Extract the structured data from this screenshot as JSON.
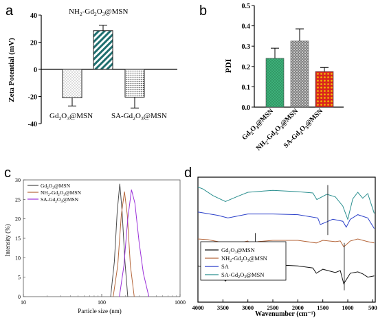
{
  "panels": [
    {
      "letter": "a",
      "chart_data": {
        "type": "bar",
        "ylabel": "Zeta Potential (mV)",
        "ylim": [
          -40,
          40
        ],
        "yticks": [
          -40,
          -20,
          0,
          20,
          40
        ],
        "categories": [
          "Gd2O3@MSN",
          "NH2-Gd2O3@MSN",
          "SA-Gd2O3@MSN"
        ],
        "category_labels": [
          {
            "t": [
              [
                "Gd",
                ""
              ],
              [
                "2",
                "sub"
              ],
              [
                "O",
                ""
              ],
              [
                "3",
                "sub"
              ],
              [
                "@MSN",
                ""
              ]
            ]
          },
          {
            "t": [
              [
                "NH",
                ""
              ],
              [
                "2",
                "sub"
              ],
              [
                "-Gd",
                ""
              ],
              [
                "2",
                "sub"
              ],
              [
                "O",
                ""
              ],
              [
                "3",
                "sub"
              ],
              [
                "@MSN",
                ""
              ]
            ]
          },
          {
            "t": [
              [
                "SA-Gd",
                ""
              ],
              [
                "2",
                "sub"
              ],
              [
                "O",
                ""
              ],
              [
                "3",
                "sub"
              ],
              [
                "@MSN",
                ""
              ]
            ]
          }
        ],
        "values": [
          -21,
          28.5,
          -20.5
        ],
        "errors": [
          6,
          4,
          8
        ]
      }
    },
    {
      "letter": "b",
      "chart_data": {
        "type": "bar",
        "ylabel": "PDI",
        "ylim": [
          0,
          0.5
        ],
        "yticks": [
          "0.0",
          "0.1",
          "0.2",
          "0.3",
          "0.4",
          "0.5"
        ],
        "categories": [
          "Gd2O3@MSN",
          "NH2-Gd2O3@MSN",
          "SA-Gd2O3@MSN"
        ],
        "category_labels": [
          {
            "t": [
              [
                "Gd",
                ""
              ],
              [
                "2",
                "sub"
              ],
              [
                "O",
                ""
              ],
              [
                "3",
                "sub"
              ],
              [
                "@MSN",
                ""
              ]
            ]
          },
          {
            "t": [
              [
                "NH",
                ""
              ],
              [
                "2",
                "sub"
              ],
              [
                "-Gd",
                ""
              ],
              [
                "2",
                "sub"
              ],
              [
                "O",
                ""
              ],
              [
                "3",
                "sub"
              ],
              [
                "@MSN",
                ""
              ]
            ]
          },
          {
            "t": [
              [
                "SA-Gd",
                ""
              ],
              [
                "2",
                "sub"
              ],
              [
                "O",
                ""
              ],
              [
                "3",
                "sub"
              ],
              [
                "@MSN",
                ""
              ]
            ]
          }
        ],
        "values": [
          0.24,
          0.325,
          0.175
        ],
        "errors": [
          0.05,
          0.06,
          0.02
        ],
        "colors": [
          "#3fb37c",
          "#8a8a8a",
          "#e0a400"
        ]
      }
    },
    {
      "letter": "c",
      "chart_data": {
        "type": "line",
        "xlabel": "Particle size (nm)",
        "ylabel": "Intensity (%)",
        "xscale": "log",
        "xlim": [
          10,
          1000
        ],
        "xticks": [
          "10",
          "100",
          "1000"
        ],
        "ylim": [
          0,
          30
        ],
        "yticks": [
          "0",
          "5",
          "10",
          "15",
          "20",
          "25",
          "30"
        ],
        "legend_position": "top-left",
        "series": [
          {
            "name": "Gd2O3@MSN",
            "label": {
              "t": [
                [
                  "Gd",
                  ""
                ],
                [
                  "2",
                  "sub"
                ],
                [
                  "O",
                  ""
                ],
                [
                  "3",
                  "sub"
                ],
                [
                  "@MSN",
                  ""
                ]
              ]
            },
            "color": "#4a4a4a",
            "x": [
              130,
              145,
              158,
              170,
              182,
              198,
              215
            ],
            "y": [
              0,
              9,
              22,
              29,
              22,
              9,
              0
            ]
          },
          {
            "name": "NH2-Gd2O3@MSN",
            "label": {
              "t": [
                [
                  "NH",
                  ""
                ],
                [
                  "2",
                  "sub"
                ],
                [
                  "-Gd",
                  ""
                ],
                [
                  "2",
                  "sub"
                ],
                [
                  "O",
                  ""
                ],
                [
                  "3",
                  "sub"
                ],
                [
                  "@MSN",
                  ""
                ]
              ]
            },
            "color": "#b5663a",
            "x": [
              140,
              160,
              178,
              195,
              212,
              232,
              260
            ],
            "y": [
              0,
              8,
              21,
              27,
              21,
              8,
              0
            ]
          },
          {
            "name": "SA-Gd2O3@MSN",
            "label": {
              "t": [
                [
                  "SA-Gd",
                  ""
                ],
                [
                  "2",
                  "sub"
                ],
                [
                  "O",
                  ""
                ],
                [
                  "3",
                  "sub"
                ],
                [
                  "@MSN",
                  ""
                ]
              ]
            },
            "color": "#9b30d9",
            "x": [
              168,
              192,
              215,
              240,
              265,
              300,
              340,
              400
            ],
            "y": [
              0,
              8,
              20,
              27.5,
              24,
              14,
              6,
              0
            ]
          }
        ]
      }
    },
    {
      "letter": "d",
      "chart_data": {
        "type": "line",
        "xlabel": "Wavenumber (cm⁻¹)",
        "xlim": [
          4000,
          450
        ],
        "xticks": [
          "4000",
          "3500",
          "3000",
          "2500",
          "2000",
          "1500",
          "1000",
          "500"
        ],
        "legend_position": "bottom-left",
        "annotations": [
          2850,
          1400,
          1070
        ],
        "series": [
          {
            "name": "Gd2O3@MSN",
            "label": {
              "t": [
                [
                  "Gd",
                  ""
                ],
                [
                  "2",
                  "sub"
                ],
                [
                  "O",
                  ""
                ],
                [
                  "3",
                  "sub"
                ],
                [
                  "@MSN",
                  ""
                ]
              ]
            },
            "color": "#111111",
            "x": [
              4000,
              3800,
              3600,
              3450,
              3300,
              3000,
              2500,
              2000,
              1700,
              1630,
              1500,
              1250,
              1150,
              1080,
              950,
              800,
              700,
              600,
              470
            ],
            "y": [
              17.5,
              17.3,
              16.6,
              15.2,
              16.5,
              17.6,
              17.7,
              17.5,
              17.2,
              16.4,
              17.0,
              16.5,
              16.8,
              14.8,
              16.4,
              16.6,
              16.3,
              15.8,
              16.0
            ]
          },
          {
            "name": "NH2-Gd2O3@MSN",
            "label": {
              "t": [
                [
                  "NH",
                  ""
                ],
                [
                  "2",
                  "sub"
                ],
                [
                  "-Gd",
                  ""
                ],
                [
                  "2",
                  "sub"
                ],
                [
                  "O",
                  ""
                ],
                [
                  "3",
                  "sub"
                ],
                [
                  "@MSN",
                  ""
                ]
              ]
            },
            "color": "#b5663a",
            "x": [
              4000,
              3800,
              3600,
              3400,
              3000,
              2930,
              2860,
              2800,
              2500,
              2000,
              1630,
              1500,
              1250,
              1150,
              1080,
              950,
              800,
              600,
              470
            ],
            "y": [
              21.6,
              21.5,
              21.2,
              20.6,
              21.3,
              20.4,
              20.7,
              21.2,
              21.4,
              21.4,
              21.0,
              21.4,
              21.2,
              21.3,
              20.4,
              21.3,
              21.6,
              21.2,
              21.0
            ]
          },
          {
            "name": "SA",
            "label": {
              "t": [
                [
                  "SA",
                  ""
                ]
              ]
            },
            "color": "#2a3fc9",
            "x": [
              4000,
              3600,
              3400,
              3000,
              2500,
              2000,
              1600,
              1550,
              1420,
              1300,
              1100,
              1030,
              950,
              800,
              600,
              470
            ],
            "y": [
              25.7,
              25.2,
              24.8,
              25.4,
              25.4,
              25.3,
              24.8,
              23.8,
              24.2,
              24.6,
              24.3,
              23.4,
              24.6,
              25.3,
              24.8,
              23.2
            ]
          },
          {
            "name": "SA-Gd2O3@MSN",
            "label": {
              "t": [
                [
                  "SA-Gd",
                  ""
                ],
                [
                  "2",
                  "sub"
                ],
                [
                  "O",
                  ""
                ],
                [
                  "3",
                  "sub"
                ],
                [
                  "@MSN",
                  ""
                ]
              ]
            },
            "color": "#2a8f8f",
            "x": [
              4000,
              3900,
              3700,
              3450,
              3200,
              3000,
              2500,
              2000,
              1700,
              1620,
              1420,
              1250,
              1100,
              1000,
              900,
              800,
              700,
              600,
              470
            ],
            "y": [
              29.5,
              29.2,
              28.2,
              27.3,
              28.1,
              28.7,
              29.0,
              28.8,
              28.6,
              27.6,
              28.4,
              28.0,
              26.6,
              24.6,
              27.7,
              28.7,
              27.8,
              28.5,
              25.5
            ]
          }
        ]
      }
    }
  ]
}
